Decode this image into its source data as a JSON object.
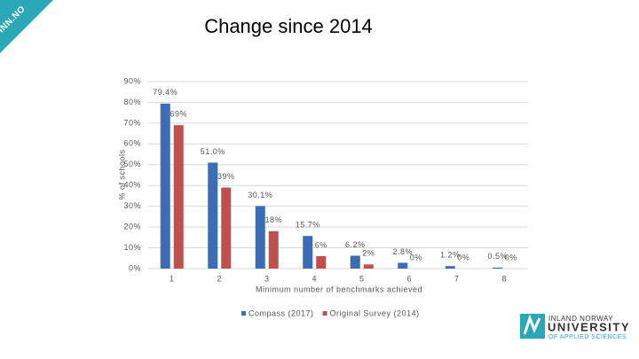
{
  "corner_label": "INN.NO",
  "logo": {
    "line1": "INLAND NORWAY",
    "line2": "UNIVERSITY",
    "line3": "OF APPLIED SCIENCES"
  },
  "chart_data": {
    "type": "bar",
    "title": "Change since 2014",
    "x_label": "Minimum number of benchmarks achieved",
    "y_label": "% of schools",
    "categories": [
      "1",
      "2",
      "3",
      "4",
      "5",
      "6",
      "7",
      "8"
    ],
    "series": [
      {
        "name": "Compass (2017)",
        "color": "#3a6db3",
        "values": [
          79.4,
          51.0,
          30.1,
          15.7,
          6.2,
          2.8,
          1.2,
          0.5
        ],
        "value_labels": [
          "79.4%",
          "51.0%",
          "30.1%",
          "15.7%",
          "6.2%",
          "2.8%",
          "1.2%",
          "0.5%"
        ]
      },
      {
        "name": "Original Survey (2014)",
        "color": "#c0504d",
        "values": [
          69,
          39,
          18,
          6,
          2,
          0,
          0,
          0
        ],
        "value_labels": [
          "69%",
          "39%",
          "18%",
          "6%",
          "2%",
          "0%",
          "0%",
          "0%"
        ]
      }
    ],
    "ylim": [
      0,
      90
    ],
    "yticks": [
      {
        "value": 0,
        "label": "0%"
      },
      {
        "value": 10,
        "label": "10%"
      },
      {
        "value": 20,
        "label": "20%"
      },
      {
        "value": 30,
        "label": "30%"
      },
      {
        "value": 40,
        "label": "40%"
      },
      {
        "value": 50,
        "label": "50%"
      },
      {
        "value": 60,
        "label": "60%"
      },
      {
        "value": 70,
        "label": "70%"
      },
      {
        "value": 80,
        "label": "80%"
      },
      {
        "value": 90,
        "label": "90%"
      }
    ],
    "grid": true,
    "legend": "bottom"
  }
}
